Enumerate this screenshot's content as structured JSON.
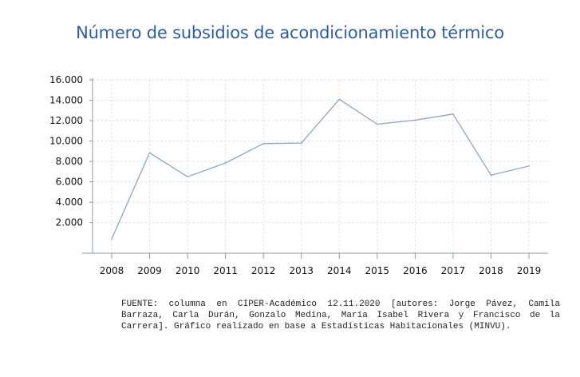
{
  "chart_data": {
    "type": "line",
    "title": "Número de subsidios de acondicionamiento térmico",
    "xlabel": "",
    "ylabel": "",
    "x": [
      "2008",
      "2009",
      "2010",
      "2011",
      "2012",
      "2013",
      "2014",
      "2015",
      "2016",
      "2017",
      "2018",
      "2019"
    ],
    "series": [
      {
        "values": [
          400,
          8850,
          6500,
          7850,
          9750,
          9800,
          14100,
          11650,
          12050,
          12650,
          6650,
          7550
        ]
      }
    ],
    "ylim": [
      -1000,
      16000
    ],
    "yticks": [
      2000,
      4000,
      6000,
      8000,
      10000,
      12000,
      14000,
      16000
    ],
    "ytick_labels": [
      "2.000",
      "4.000",
      "6.000",
      "8.000",
      "10.000",
      "12.000",
      "14.000",
      "16.000"
    ],
    "grid": true,
    "legend": "none",
    "colors": {
      "line": "#8ea4bd",
      "grid": "#e2e2e2",
      "axis": "#8a98ab",
      "title": "#2f5d9a"
    }
  },
  "source_note": "FUENTE: columna en CIPER-Académico 12.11.2020 [autores: Jorge Pávez, Camila Barraza, Carla Durán, Gonzalo Medina, María Isabel Rivera y Francisco de la Carrera]. Gráfico realizado en base a Estadísticas Habitacionales (MINVU)."
}
